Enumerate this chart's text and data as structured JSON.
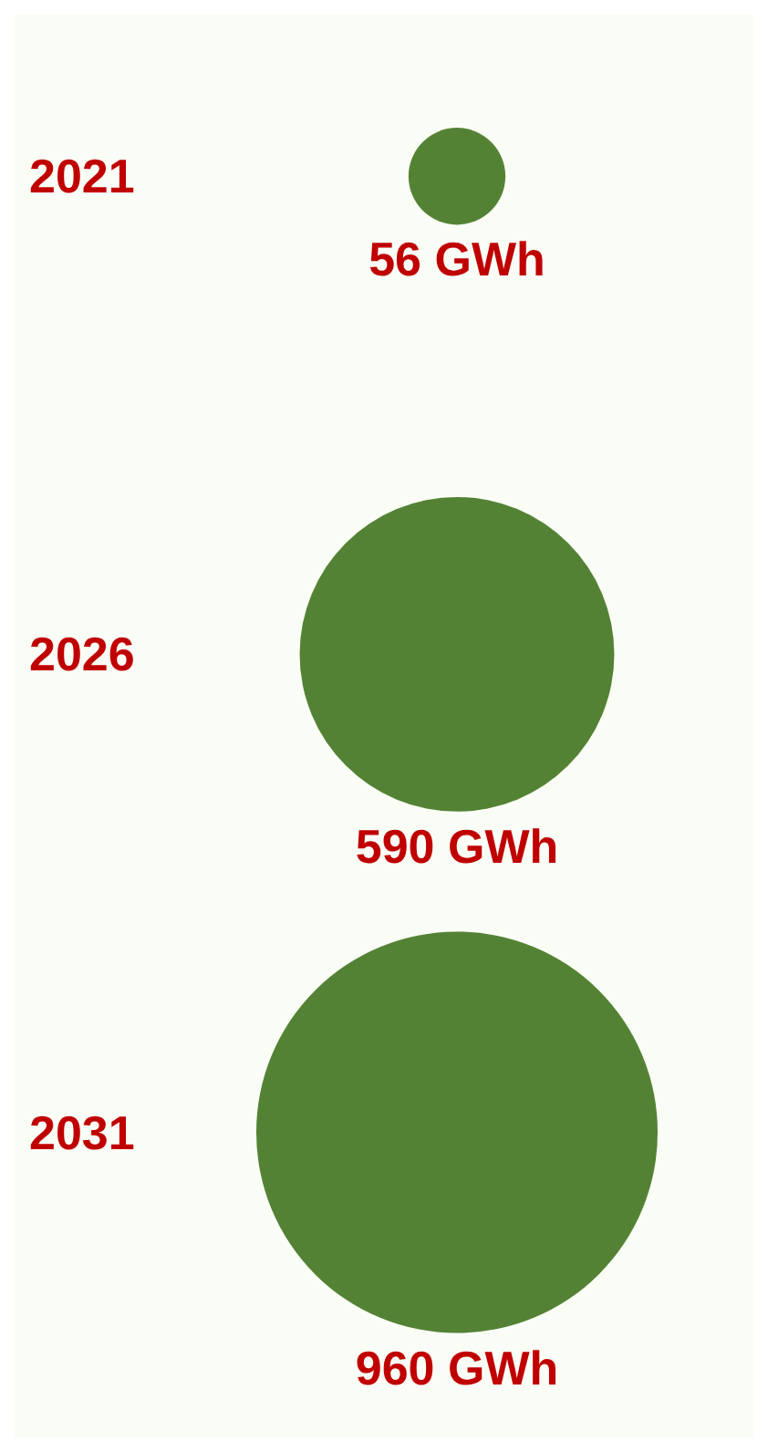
{
  "chart_data": {
    "type": "other",
    "categories": [
      "2021",
      "2026",
      "2031"
    ],
    "values": [
      56,
      590,
      960
    ],
    "value_labels": [
      "56 GWh",
      "590 GWh",
      "960 GWh"
    ],
    "color": "#548235"
  }
}
